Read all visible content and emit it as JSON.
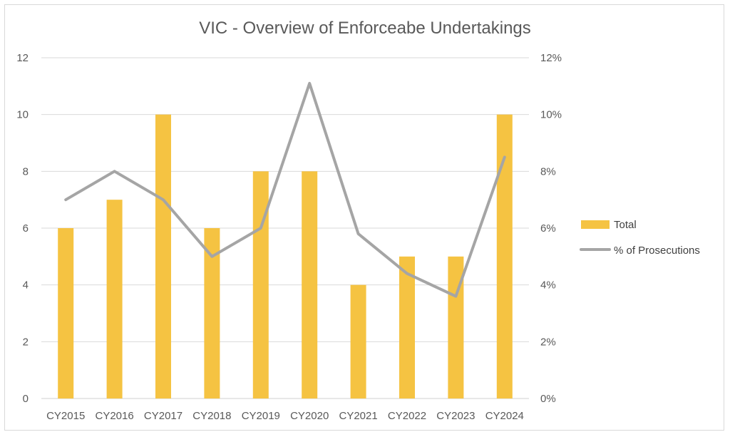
{
  "chart_data": {
    "type": "bar+line",
    "title": "VIC - Overview of Enforceabe Undertakings",
    "categories": [
      "CY2015",
      "CY2016",
      "CY2017",
      "CY2018",
      "CY2019",
      "CY2020",
      "CY2021",
      "CY2022",
      "CY2023",
      "CY2024"
    ],
    "series": [
      {
        "name": "Total",
        "type": "bar",
        "axis": "left",
        "color": "#F5C342",
        "values": [
          6,
          7,
          10,
          6,
          8,
          8,
          4,
          5,
          5,
          10
        ]
      },
      {
        "name": "% of Prosecutions",
        "type": "line",
        "axis": "right",
        "color": "#A5A5A5",
        "values": [
          7.0,
          8.0,
          7.0,
          5.0,
          6.0,
          11.1,
          5.8,
          4.4,
          3.6,
          8.5
        ]
      }
    ],
    "ylim": [
      0,
      12
    ],
    "yticks": [
      "0",
      "2",
      "4",
      "6",
      "8",
      "10",
      "12"
    ],
    "y2lim": [
      0,
      12
    ],
    "y2ticks": [
      "0%",
      "2%",
      "4%",
      "6%",
      "8%",
      "10%",
      "12%"
    ],
    "grid": true,
    "legend": "right"
  }
}
